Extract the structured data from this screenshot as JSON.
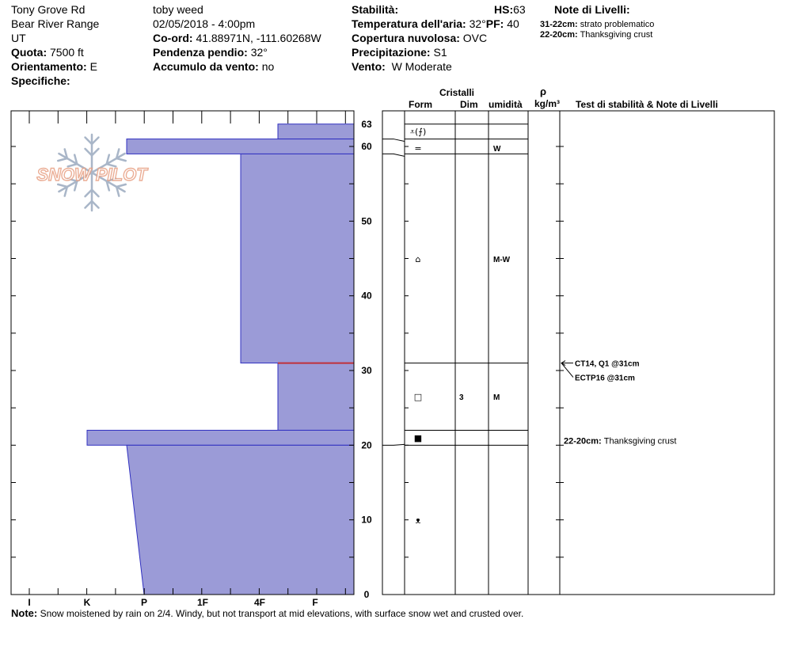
{
  "header": {
    "location": "Tony Grove Rd",
    "range": "Bear River Range",
    "state": "UT",
    "elevation_label": "Quota:",
    "elevation_value": "7500 ft",
    "aspect_label": "Orientamento:",
    "aspect_value": "E",
    "specifics_label": "Specifiche:",
    "observer": "toby weed",
    "datetime": "02/05/2018 - 4:00pm",
    "coords_label": "Co-ord:",
    "coords_value": "41.88971N, -111.60268W",
    "slope_label": "Pendenza pendio:",
    "slope_value": "32°",
    "wind_loading_label": "Accumulo da vento:",
    "wind_loading_value": "no",
    "stability_label": "Stabilità:",
    "hs_label": "HS:",
    "hs_value": "63",
    "air_temp_label": "Temperatura dell'aria:",
    "air_temp_value": "32°",
    "pf_label": "PF:",
    "pf_value": "40",
    "cloud_label": "Copertura nuvolosa:",
    "cloud_value": "OVC",
    "precip_label": "Precipitazione:",
    "precip_value": "S1",
    "wind_label": "Vento:",
    "wind_value": "W Moderate",
    "layer_notes_title": "Note di Livelli:",
    "layer_notes": [
      {
        "range": "31-22cm:",
        "text": "strato problematico"
      },
      {
        "range": "22-20cm:",
        "text": "Thanksgiving crust"
      }
    ]
  },
  "logo_text": "SNOW PILOT",
  "columns": {
    "crystals": "Cristalli",
    "form": "Form",
    "dim": "Dim",
    "moisture": "umidità",
    "rho": "ρ",
    "density_unit": "kg/m³",
    "tests": "Test di stabilità & Note di Livelli"
  },
  "note_label": "Note:",
  "note_text": "Snow moistened by rain on 2/4.  Windy, but not transport at mid elevations, with surface snow wet and crusted over.",
  "chart_data": {
    "type": "snow-profile",
    "hardness_scale": [
      "I",
      "K",
      "P",
      "1F",
      "4F",
      "F"
    ],
    "depth_ticks": [
      63,
      60,
      50,
      40,
      30,
      20,
      10,
      0
    ],
    "depth_range": [
      0,
      63
    ],
    "layers": [
      {
        "top": 63,
        "bottom": 61,
        "hardness": "4F",
        "form": "⩡(⨍)",
        "size": "",
        "moisture": ""
      },
      {
        "top": 61,
        "bottom": 59,
        "hardness": "K+",
        "form": "=",
        "size": "",
        "moisture": "W"
      },
      {
        "top": 59,
        "bottom": 31,
        "hardness": "1F-",
        "form": "⌂",
        "size": "",
        "moisture": "M-W"
      },
      {
        "top": 31,
        "bottom": 22,
        "hardness": "4F",
        "form": "□",
        "size": "3",
        "moisture": "M"
      },
      {
        "top": 22,
        "bottom": 20,
        "hardness": "K",
        "form": "■",
        "size": "",
        "moisture": ""
      },
      {
        "top": 20,
        "bottom": 0,
        "hardness_top": "K+",
        "hardness_bottom": "P",
        "form": "ᴥ",
        "size": "",
        "moisture": ""
      }
    ],
    "critical_layer_depth": 31,
    "tests": [
      {
        "text": "CT14, Q1 @31cm",
        "depth": 31
      },
      {
        "text": "ECTP16 @31cm",
        "depth": 31
      }
    ],
    "layer_notes_in_profile": [
      {
        "range": "22-20cm:",
        "text": "Thanksgiving crust",
        "depth": 20
      }
    ]
  }
}
